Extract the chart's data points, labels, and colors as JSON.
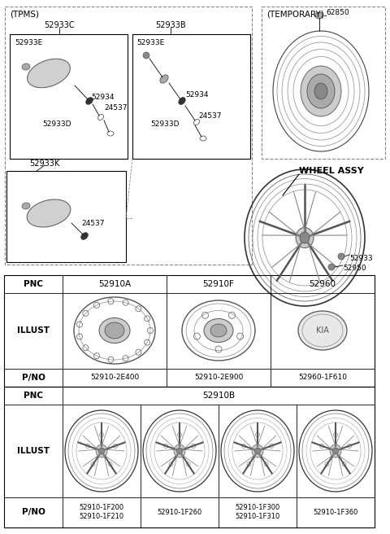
{
  "bg_color": "#ffffff",
  "fig_width": 4.8,
  "fig_height": 6.56,
  "dpi": 100,
  "tpms_label": "(TPMS)",
  "temporary_label": "(TEMPORARY)",
  "wheel_assy_label": "WHEEL ASSY",
  "text_color": "#000000",
  "table_row1_pnc": [
    "52910A",
    "52910F",
    "52960"
  ],
  "table_row1_pno": [
    "52910-2E400",
    "52910-2E900",
    "52960-1F610"
  ],
  "table_row2_pnc": "52910B",
  "table_row2_pno": [
    "52910-1F200\n52910-1F210",
    "52910-1F260",
    "52910-1F300\n52910-1F310",
    "52910-1F360"
  ]
}
